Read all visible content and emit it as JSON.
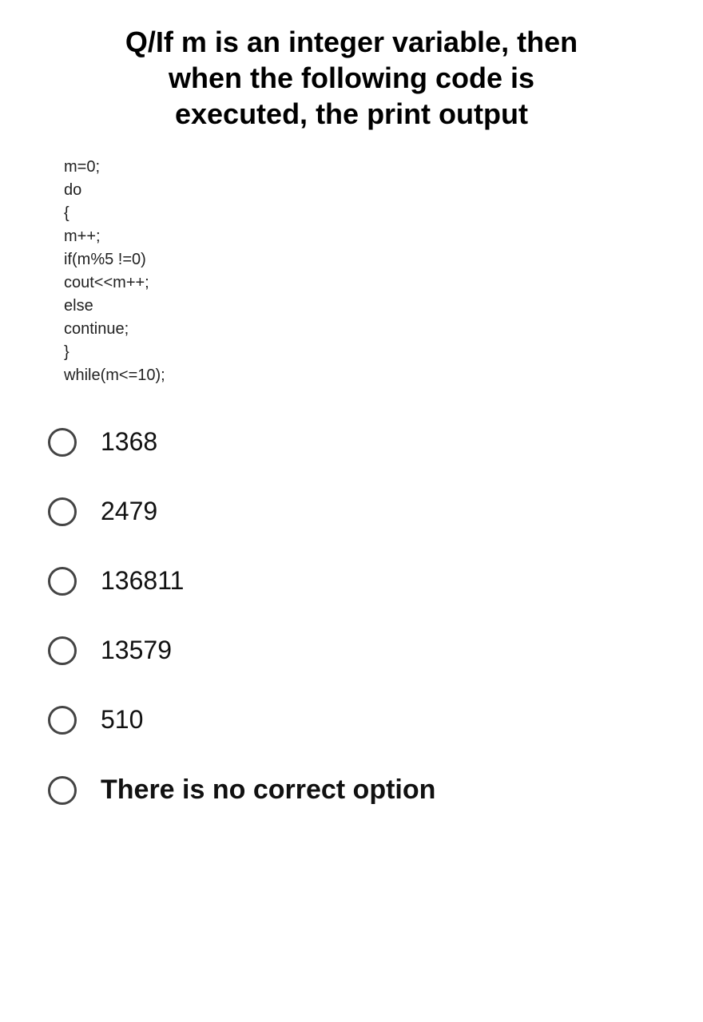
{
  "question": {
    "title": "Q/If m is an integer variable, then when the following code is executed, the print output",
    "code_lines": [
      "m=0;",
      "do",
      "{",
      "m++;",
      "if(m%5 !=0)",
      "cout<<m++;",
      "else",
      "continue;",
      "}",
      "while(m<=10);"
    ]
  },
  "options": [
    {
      "label": "1368",
      "bold": false
    },
    {
      "label": "2479",
      "bold": false
    },
    {
      "label": "136811",
      "bold": false
    },
    {
      "label": "13579",
      "bold": false
    },
    {
      "label": "510",
      "bold": false
    },
    {
      "label": "There is no correct option",
      "bold": true
    }
  ],
  "style": {
    "title_fontsize": 36,
    "code_fontsize": 20,
    "option_fontsize": 32,
    "bold_option_fontsize": 34,
    "radio_size": 36,
    "radio_border_color": "#444444",
    "background_color": "#ffffff",
    "text_color": "#000000"
  }
}
